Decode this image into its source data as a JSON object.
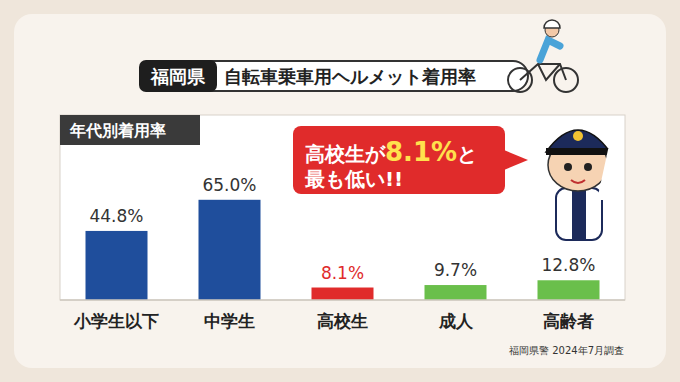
{
  "chart_data": {
    "type": "bar",
    "title": "自転車乗車用ヘルメット着用率",
    "region": "福岡県",
    "subtitle": "年代別着用率",
    "annotation": [
      "高校生が",
      "8.1%",
      "と",
      "最も低い!!"
    ],
    "source": "福岡県警 2024年7月調査",
    "categories": [
      "小学生以下",
      "中学生",
      "高校生",
      "成人",
      "高齢者"
    ],
    "values": [
      44.8,
      65.0,
      8.1,
      9.7,
      12.8
    ],
    "value_labels": [
      "44.8%",
      "65.0%",
      "8.1%",
      "9.7%",
      "12.8%"
    ],
    "colors": [
      "#1f4e9c",
      "#1f4e9c",
      "#e02b2b",
      "#6abf4b",
      "#6abf4b"
    ],
    "ylim": [
      0,
      120
    ],
    "data_labels": true,
    "tick_labels": "x",
    "grid": false
  }
}
